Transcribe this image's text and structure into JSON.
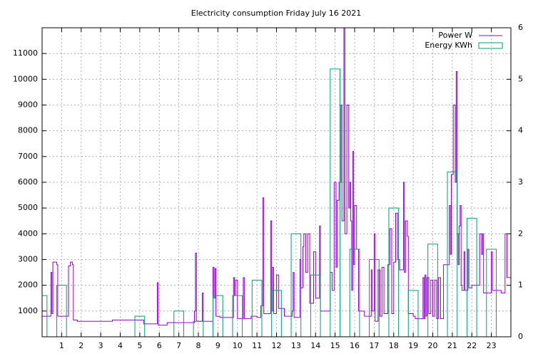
{
  "chart_data": {
    "type": "line",
    "title": "Electricity consumption Friday July 16 2021",
    "xlim": [
      0,
      24
    ],
    "xticks": [
      1,
      2,
      3,
      4,
      5,
      6,
      7,
      8,
      9,
      10,
      11,
      12,
      13,
      14,
      15,
      16,
      17,
      18,
      19,
      20,
      21,
      22,
      23
    ],
    "ylim": [
      0,
      12000
    ],
    "yticks": [
      1000,
      2000,
      3000,
      4000,
      5000,
      6000,
      7000,
      8000,
      9000,
      10000,
      11000
    ],
    "y2lim": [
      0,
      6
    ],
    "y2ticks": [
      0,
      1,
      2,
      3,
      4,
      5,
      6
    ],
    "grid": true,
    "legend": "top-right",
    "series": [
      {
        "name": "Power W",
        "color": "#9400d3",
        "style": "steps",
        "x": [
          0,
          0.4,
          0.45,
          0.5,
          0.55,
          0.75,
          0.8,
          1.3,
          1.35,
          1.45,
          1.55,
          1.6,
          1.8,
          3.0,
          3.6,
          4.5,
          5.1,
          5.2,
          5.85,
          5.9,
          5.95,
          6.4,
          7.7,
          7.8,
          7.85,
          7.9,
          8.2,
          8.25,
          8.7,
          8.75,
          8.8,
          8.85,
          8.9,
          9.1,
          9.8,
          9.85,
          9.9,
          10.0,
          10.3,
          10.35,
          10.7,
          11.0,
          11.2,
          11.3,
          11.35,
          11.7,
          11.75,
          11.8,
          11.85,
          12.0,
          12.1,
          12.4,
          12.8,
          12.85,
          12.9,
          13.2,
          13.25,
          13.35,
          13.4,
          13.5,
          13.6,
          13.7,
          13.9,
          14.0,
          14.2,
          14.25,
          14.7,
          14.75,
          14.85,
          14.95,
          15.05,
          15.1,
          15.2,
          15.3,
          15.35,
          15.45,
          15.5,
          15.6,
          15.7,
          15.75,
          15.8,
          15.85,
          15.9,
          15.95,
          16.0,
          16.1,
          16.2,
          16.5,
          16.85,
          16.9,
          17.0,
          17.05,
          17.2,
          17.3,
          17.4,
          17.5,
          17.7,
          17.8,
          17.9,
          18.0,
          18.1,
          18.2,
          18.3,
          18.5,
          18.55,
          18.6,
          18.7,
          18.75,
          19.0,
          19.1,
          19.45,
          19.5,
          19.55,
          19.6,
          19.65,
          19.7,
          19.8,
          19.9,
          20.0,
          20.1,
          20.2,
          20.3,
          20.4,
          20.55,
          20.85,
          20.9,
          20.95,
          21.05,
          21.15,
          21.2,
          21.25,
          21.3,
          21.35,
          21.4,
          21.45,
          21.5,
          21.6,
          21.65,
          21.8,
          21.85,
          22.0,
          22.3,
          22.4,
          22.5,
          22.55,
          22.6,
          22.9,
          23.0,
          23.05,
          23.5,
          23.7,
          23.8,
          24.0
        ],
        "values": [
          800,
          800,
          2500,
          900,
          2900,
          2800,
          800,
          800,
          2750,
          2900,
          2800,
          650,
          600,
          600,
          650,
          650,
          650,
          500,
          500,
          2100,
          450,
          550,
          550,
          1000,
          3250,
          600,
          1700,
          600,
          600,
          2700,
          1500,
          2650,
          800,
          750,
          2300,
          1600,
          2200,
          700,
          2300,
          700,
          800,
          750,
          1200,
          5400,
          900,
          4500,
          1000,
          2700,
          900,
          2400,
          1100,
          800,
          1000,
          2500,
          750,
          3000,
          1900,
          3500,
          4000,
          2500,
          4000,
          1300,
          3300,
          1500,
          4300,
          1000,
          1000,
          2500,
          1800,
          6000,
          2700,
          5300,
          6000,
          9000,
          4500,
          12000,
          4000,
          9000,
          5000,
          6000,
          4500,
          1800,
          7200,
          2800,
          5100,
          3400,
          1000,
          800,
          2600,
          1000,
          4000,
          600,
          2600,
          800,
          2700,
          900,
          2800,
          4200,
          900,
          2900,
          4800,
          3000,
          2600,
          6000,
          2500,
          4500,
          3900,
          900,
          800,
          700,
          700,
          2300,
          700,
          2400,
          800,
          2300,
          900,
          2200,
          800,
          2200,
          700,
          2300,
          700,
          2800,
          5100,
          3200,
          6300,
          9000,
          6000,
          10300,
          4000,
          2800,
          4300,
          5100,
          2000,
          1800,
          3300,
          1800,
          3400,
          1900,
          2000,
          2000,
          4000,
          3200,
          4000,
          1700,
          1700,
          3300,
          1800,
          1700,
          4000,
          2300,
          2300
        ]
      },
      {
        "name": "Energy KWh",
        "color": "#009e73",
        "style": "boxes",
        "axis": "y2",
        "x": [
          0,
          1,
          2,
          3,
          4,
          5,
          6,
          7,
          8,
          9,
          10,
          11,
          12,
          13,
          14,
          15,
          16,
          17,
          18,
          19,
          20,
          21,
          22,
          23
        ],
        "values": [
          0.8,
          1.0,
          null,
          null,
          null,
          0.4,
          null,
          0.5,
          0.3,
          0.8,
          0.8,
          1.1,
          0.9,
          2.0,
          1.2,
          5.2,
          1.7,
          1.5,
          2.5,
          0.9,
          1.8,
          3.2,
          2.3,
          1.7
        ]
      }
    ]
  }
}
